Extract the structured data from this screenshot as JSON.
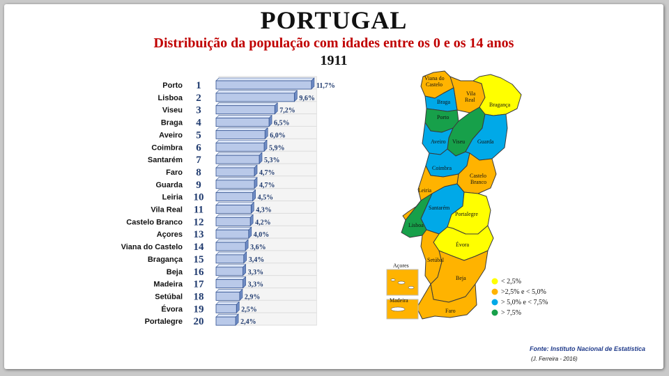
{
  "header": {
    "title": "PORTUGAL",
    "subtitle": "Distribuição da população com idades entre os 0 e os 14 anos",
    "year": "1911"
  },
  "chart_data": {
    "type": "bar",
    "orientation": "horizontal",
    "categories": [
      "Porto",
      "Lisboa",
      "Viseu",
      "Braga",
      "Aveiro",
      "Coimbra",
      "Santarém",
      "Faro",
      "Guarda",
      "Leiria",
      "Vila Real",
      "Castelo Branco",
      "Açores",
      "Viana do Castelo",
      "Bragança",
      "Beja",
      "Madeira",
      "Setúbal",
      "Évora",
      "Portalegre"
    ],
    "ranks": [
      "1",
      "2",
      "3",
      "4",
      "5",
      "6",
      "7",
      "8",
      "9",
      "10",
      "11",
      "12",
      "13",
      "14",
      "15",
      "16",
      "17",
      "18",
      "19",
      "20"
    ],
    "values": [
      11.7,
      9.6,
      7.2,
      6.5,
      6.0,
      5.9,
      5.3,
      4.7,
      4.7,
      4.5,
      4.3,
      4.2,
      4.0,
      3.6,
      3.4,
      3.3,
      3.3,
      2.9,
      2.5,
      2.4
    ],
    "value_labels": [
      "11,7%",
      "9,6%",
      "7,2%",
      "6,5%",
      "6,0%",
      "5,9%",
      "5,3%",
      "4,7%",
      "4,7%",
      "4,5%",
      "4,3%",
      "4,2%",
      "4,0%",
      "3,6%",
      "3,4%",
      "3,3%",
      "3,3%",
      "2,9%",
      "2,5%",
      "2,4%"
    ],
    "xlim": [
      0,
      12
    ],
    "grid": true,
    "bar_color": "#b9c9e9"
  },
  "map": {
    "legend": [
      {
        "label": "< 2,5%",
        "color": "#ffff00"
      },
      {
        "label": ">2,5% e < 5,0%",
        "color": "#ffb300"
      },
      {
        "label": "> 5,0%  e < 7,5%",
        "color": "#00a9e8"
      },
      {
        "label": "> 7,5%",
        "color": "#17a04a"
      }
    ],
    "labels": {
      "viana": "Viana do Castelo",
      "vilareal": "Vila Real",
      "braganca": "Bragança",
      "braga": "Braga",
      "porto": "Porto",
      "aveiro": "Aveiro",
      "viseu": "Viseu",
      "guarda": "Guarda",
      "coimbra": "Coimbra",
      "castelo": "Castelo Branco",
      "leiria": "Leiria",
      "santarem": "Santarém",
      "portalegre": "Portalegre",
      "lisboa": "Lisboa",
      "evora": "Évora",
      "setubal": "Setúbal",
      "beja": "Beja",
      "faro": "Faro",
      "acores": "Açores",
      "madeira": "Madeira"
    },
    "colors": {
      "green": "#17a04a",
      "blue": "#00a9e8",
      "orange": "#ffb300",
      "yellow": "#ffff00",
      "border": "#3a3a3a"
    }
  },
  "footer": {
    "source": "Fonte: Instituto Nacional de Estatística",
    "author": "(J. Ferreira - 2016)"
  }
}
